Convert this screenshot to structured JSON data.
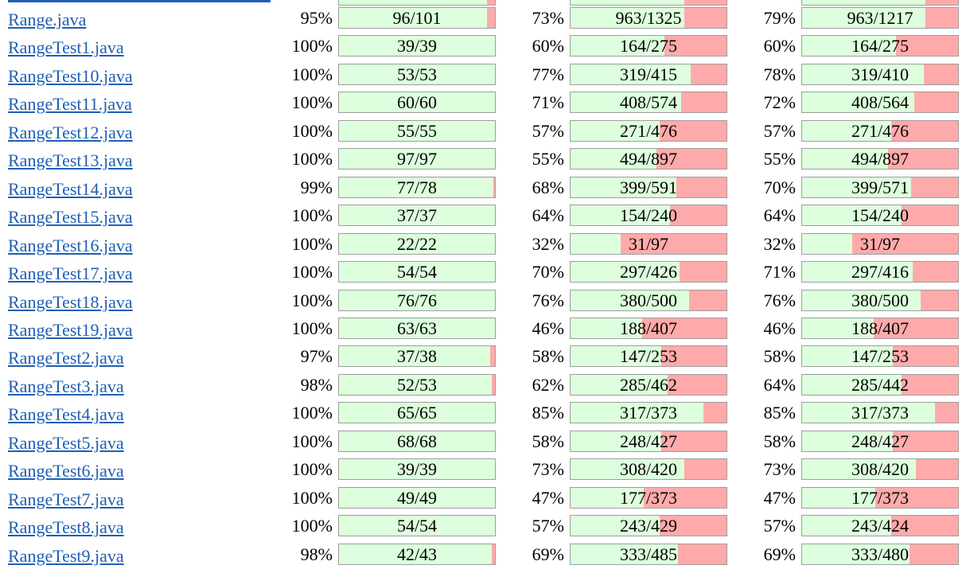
{
  "columns_hidden": true,
  "colors": {
    "link": "#1f5fb4",
    "covered": "#ddffdd",
    "missed": "#ffaaaa",
    "bar_border": "#9e9e9e"
  },
  "rows": [
    {
      "file": "Range.java",
      "c1_pct": "95%",
      "c1_text": "96/101",
      "c1_fill": 0.95,
      "c2_pct": "73%",
      "c2_text": "963/1325",
      "c2_fill": 0.73,
      "c3_pct": "79%",
      "c3_text": "963/1217",
      "c3_fill": 0.79
    },
    {
      "file": "RangeTest1.java",
      "c1_pct": "100%",
      "c1_text": "39/39",
      "c1_fill": 1.0,
      "c2_pct": "60%",
      "c2_text": "164/275",
      "c2_fill": 0.6,
      "c3_pct": "60%",
      "c3_text": "164/275",
      "c3_fill": 0.6
    },
    {
      "file": "RangeTest10.java",
      "c1_pct": "100%",
      "c1_text": "53/53",
      "c1_fill": 1.0,
      "c2_pct": "77%",
      "c2_text": "319/415",
      "c2_fill": 0.77,
      "c3_pct": "78%",
      "c3_text": "319/410",
      "c3_fill": 0.78
    },
    {
      "file": "RangeTest11.java",
      "c1_pct": "100%",
      "c1_text": "60/60",
      "c1_fill": 1.0,
      "c2_pct": "71%",
      "c2_text": "408/574",
      "c2_fill": 0.71,
      "c3_pct": "72%",
      "c3_text": "408/564",
      "c3_fill": 0.72
    },
    {
      "file": "RangeTest12.java",
      "c1_pct": "100%",
      "c1_text": "55/55",
      "c1_fill": 1.0,
      "c2_pct": "57%",
      "c2_text": "271/476",
      "c2_fill": 0.57,
      "c3_pct": "57%",
      "c3_text": "271/476",
      "c3_fill": 0.57
    },
    {
      "file": "RangeTest13.java",
      "c1_pct": "100%",
      "c1_text": "97/97",
      "c1_fill": 1.0,
      "c2_pct": "55%",
      "c2_text": "494/897",
      "c2_fill": 0.55,
      "c3_pct": "55%",
      "c3_text": "494/897",
      "c3_fill": 0.55
    },
    {
      "file": "RangeTest14.java",
      "c1_pct": "99%",
      "c1_text": "77/78",
      "c1_fill": 0.99,
      "c2_pct": "68%",
      "c2_text": "399/591",
      "c2_fill": 0.68,
      "c3_pct": "70%",
      "c3_text": "399/571",
      "c3_fill": 0.7
    },
    {
      "file": "RangeTest15.java",
      "c1_pct": "100%",
      "c1_text": "37/37",
      "c1_fill": 1.0,
      "c2_pct": "64%",
      "c2_text": "154/240",
      "c2_fill": 0.64,
      "c3_pct": "64%",
      "c3_text": "154/240",
      "c3_fill": 0.64
    },
    {
      "file": "RangeTest16.java",
      "c1_pct": "100%",
      "c1_text": "22/22",
      "c1_fill": 1.0,
      "c2_pct": "32%",
      "c2_text": "31/97",
      "c2_fill": 0.32,
      "c3_pct": "32%",
      "c3_text": "31/97",
      "c3_fill": 0.32
    },
    {
      "file": "RangeTest17.java",
      "c1_pct": "100%",
      "c1_text": "54/54",
      "c1_fill": 1.0,
      "c2_pct": "70%",
      "c2_text": "297/426",
      "c2_fill": 0.7,
      "c3_pct": "71%",
      "c3_text": "297/416",
      "c3_fill": 0.71
    },
    {
      "file": "RangeTest18.java",
      "c1_pct": "100%",
      "c1_text": "76/76",
      "c1_fill": 1.0,
      "c2_pct": "76%",
      "c2_text": "380/500",
      "c2_fill": 0.76,
      "c3_pct": "76%",
      "c3_text": "380/500",
      "c3_fill": 0.76
    },
    {
      "file": "RangeTest19.java",
      "c1_pct": "100%",
      "c1_text": "63/63",
      "c1_fill": 1.0,
      "c2_pct": "46%",
      "c2_text": "188/407",
      "c2_fill": 0.46,
      "c3_pct": "46%",
      "c3_text": "188/407",
      "c3_fill": 0.46
    },
    {
      "file": "RangeTest2.java",
      "c1_pct": "97%",
      "c1_text": "37/38",
      "c1_fill": 0.97,
      "c2_pct": "58%",
      "c2_text": "147/253",
      "c2_fill": 0.58,
      "c3_pct": "58%",
      "c3_text": "147/253",
      "c3_fill": 0.58
    },
    {
      "file": "RangeTest3.java",
      "c1_pct": "98%",
      "c1_text": "52/53",
      "c1_fill": 0.98,
      "c2_pct": "62%",
      "c2_text": "285/462",
      "c2_fill": 0.62,
      "c3_pct": "64%",
      "c3_text": "285/442",
      "c3_fill": 0.64
    },
    {
      "file": "RangeTest4.java",
      "c1_pct": "100%",
      "c1_text": "65/65",
      "c1_fill": 1.0,
      "c2_pct": "85%",
      "c2_text": "317/373",
      "c2_fill": 0.85,
      "c3_pct": "85%",
      "c3_text": "317/373",
      "c3_fill": 0.85
    },
    {
      "file": "RangeTest5.java",
      "c1_pct": "100%",
      "c1_text": "68/68",
      "c1_fill": 1.0,
      "c2_pct": "58%",
      "c2_text": "248/427",
      "c2_fill": 0.58,
      "c3_pct": "58%",
      "c3_text": "248/427",
      "c3_fill": 0.58
    },
    {
      "file": "RangeTest6.java",
      "c1_pct": "100%",
      "c1_text": "39/39",
      "c1_fill": 1.0,
      "c2_pct": "73%",
      "c2_text": "308/420",
      "c2_fill": 0.73,
      "c3_pct": "73%",
      "c3_text": "308/420",
      "c3_fill": 0.73
    },
    {
      "file": "RangeTest7.java",
      "c1_pct": "100%",
      "c1_text": "49/49",
      "c1_fill": 1.0,
      "c2_pct": "47%",
      "c2_text": "177/373",
      "c2_fill": 0.47,
      "c3_pct": "47%",
      "c3_text": "177/373",
      "c3_fill": 0.47
    },
    {
      "file": "RangeTest8.java",
      "c1_pct": "100%",
      "c1_text": "54/54",
      "c1_fill": 1.0,
      "c2_pct": "57%",
      "c2_text": "243/429",
      "c2_fill": 0.57,
      "c3_pct": "57%",
      "c3_text": "243/424",
      "c3_fill": 0.57
    },
    {
      "file": "RangeTest9.java",
      "c1_pct": "98%",
      "c1_text": "42/43",
      "c1_fill": 0.98,
      "c2_pct": "69%",
      "c2_text": "333/485",
      "c2_fill": 0.69,
      "c3_pct": "69%",
      "c3_text": "333/480",
      "c3_fill": 0.69
    }
  ]
}
